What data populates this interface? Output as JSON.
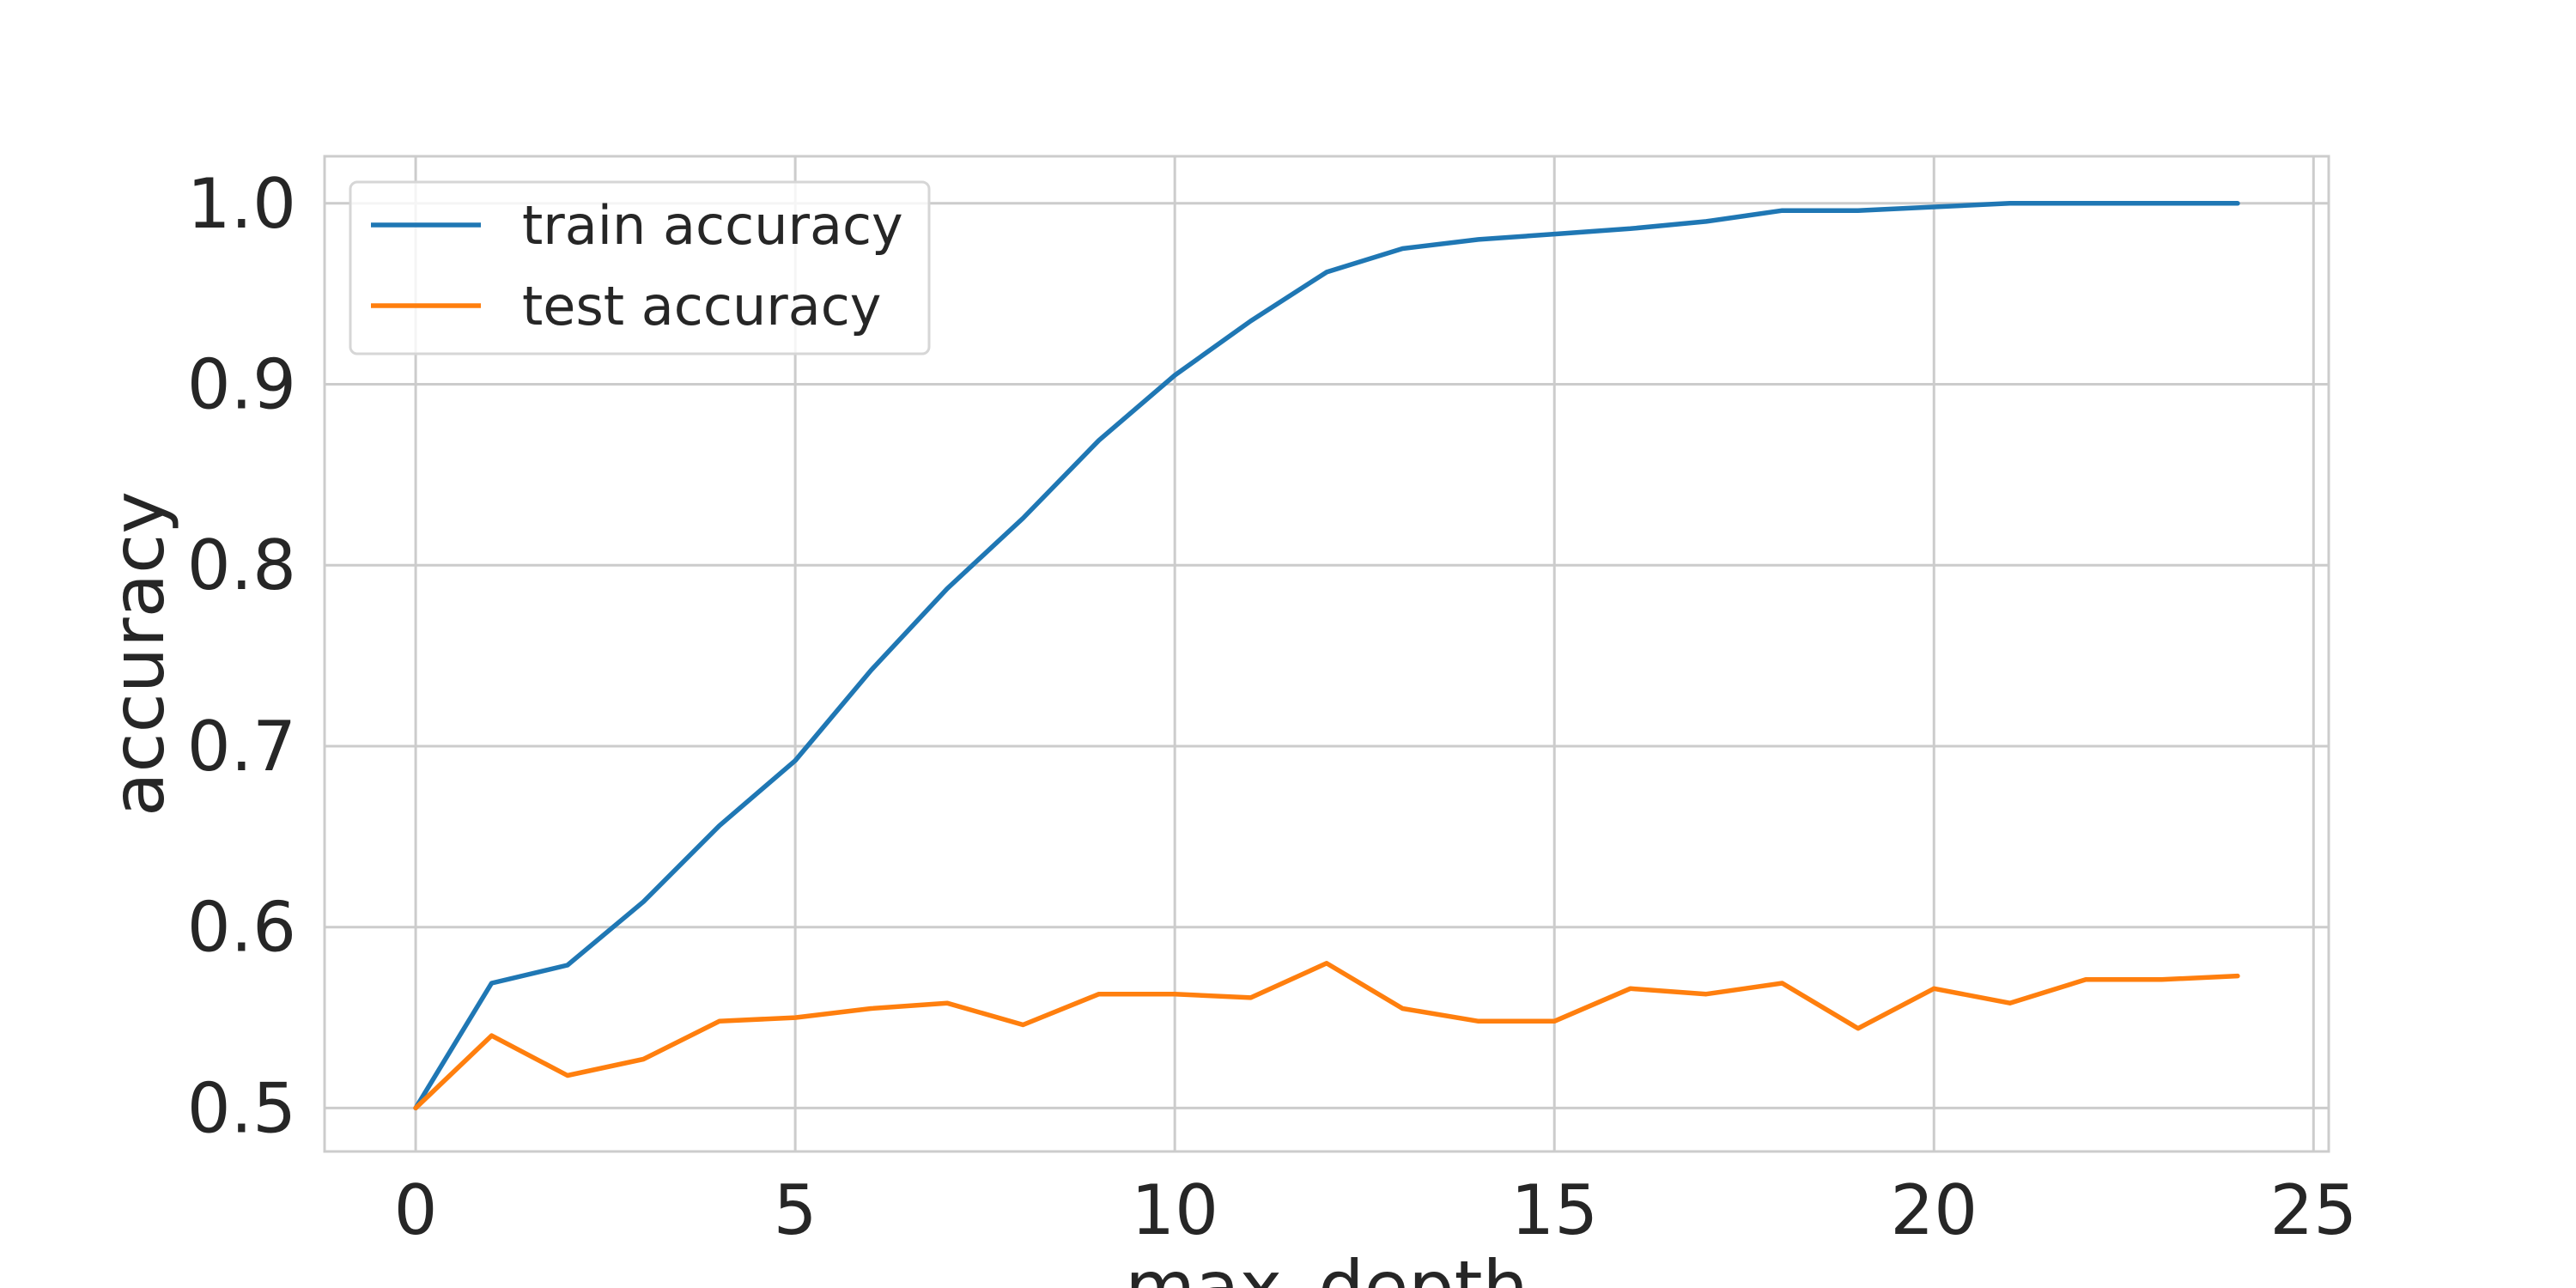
{
  "chart_data": {
    "type": "line",
    "title": "",
    "xlabel": "max_depth",
    "ylabel": "accuracy",
    "x": [
      0,
      1,
      2,
      3,
      4,
      5,
      6,
      7,
      8,
      9,
      10,
      11,
      12,
      13,
      14,
      15,
      16,
      17,
      18,
      19,
      20,
      21,
      22,
      23,
      24
    ],
    "xlim": [
      -1.2,
      25.2
    ],
    "ylim": [
      0.476,
      1.026
    ],
    "xticks": [
      0,
      5,
      10,
      15,
      20,
      25
    ],
    "yticks": [
      0.5,
      0.6,
      0.7,
      0.8,
      0.9,
      1.0
    ],
    "xtick_labels": [
      "0",
      "5",
      "10",
      "15",
      "20",
      "25"
    ],
    "ytick_labels": [
      "0.5",
      "0.6",
      "0.7",
      "0.8",
      "0.9",
      "1.0"
    ],
    "grid": true,
    "legend_position": "top-left",
    "series": [
      {
        "name": "train accuracy",
        "color": "#1f77b4",
        "values": [
          0.5,
          0.569,
          0.579,
          0.614,
          0.656,
          0.692,
          0.742,
          0.787,
          0.826,
          0.869,
          0.905,
          0.935,
          0.962,
          0.975,
          0.98,
          0.983,
          0.986,
          0.99,
          0.996,
          0.996,
          0.998,
          1.0,
          1.0,
          1.0,
          1.0
        ]
      },
      {
        "name": "test accuracy",
        "color": "#ff7f0e",
        "values": [
          0.5,
          0.54,
          0.518,
          0.527,
          0.548,
          0.55,
          0.555,
          0.558,
          0.546,
          0.563,
          0.563,
          0.561,
          0.58,
          0.555,
          0.548,
          0.548,
          0.566,
          0.563,
          0.569,
          0.544,
          0.566,
          0.558,
          0.571,
          0.571,
          0.573
        ]
      }
    ]
  }
}
